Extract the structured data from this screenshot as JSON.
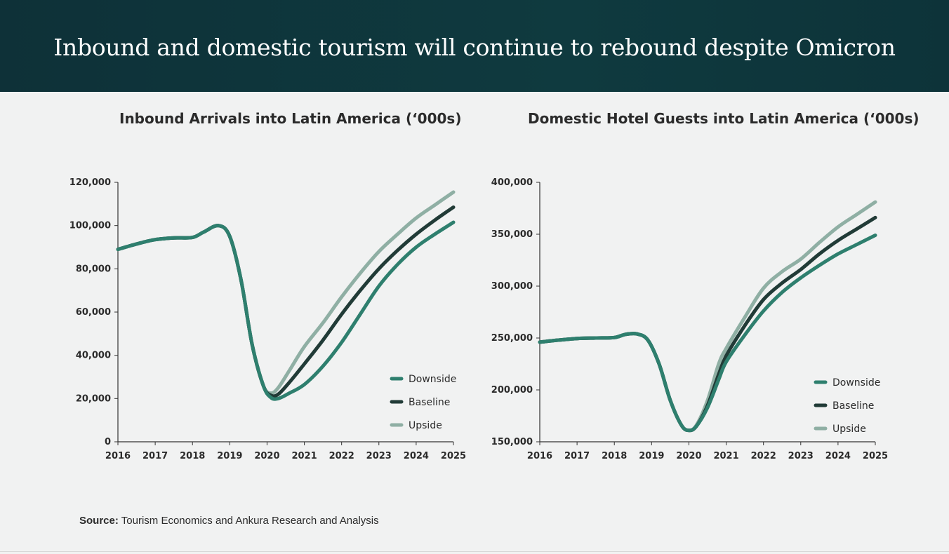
{
  "header": {
    "title": "Inbound and domestic tourism will continue to rebound despite Omicron"
  },
  "source": {
    "label": "Source:",
    "text": "Tourism Economics and Ankura Research and Analysis"
  },
  "colors": {
    "downside": "#2e7f6e",
    "baseline": "#213b37",
    "upside": "#8fafa4",
    "axis": "#333333",
    "header_bg": "#0f373d"
  },
  "chart_data": [
    {
      "type": "line",
      "title": "Inbound Arrivals into Latin America (‘000s)",
      "x_ticks": [
        "2016",
        "2017",
        "2018",
        "2019",
        "2020",
        "2021",
        "2022",
        "2023",
        "2024",
        "2025"
      ],
      "y_ticks": [
        "0",
        "20,000",
        "40,000",
        "60,000",
        "80,000",
        "100,000",
        "120,000"
      ],
      "ylim": [
        0,
        120000
      ],
      "xlim": [
        2016,
        2025
      ],
      "legend": [
        "Downside",
        "Baseline",
        "Upside"
      ],
      "legend_position": "bottom-right",
      "series": [
        {
          "name": "Upside",
          "color_key": "upside",
          "points": [
            [
              2016,
              89000
            ],
            [
              2016.5,
              91500
            ],
            [
              2017,
              93500
            ],
            [
              2017.5,
              94300
            ],
            [
              2018,
              94500
            ],
            [
              2018.3,
              97000
            ],
            [
              2018.7,
              100000
            ],
            [
              2019,
              95000
            ],
            [
              2019.3,
              75000
            ],
            [
              2019.6,
              45000
            ],
            [
              2019.9,
              26000
            ],
            [
              2020.1,
              22500
            ],
            [
              2020.3,
              25000
            ],
            [
              2020.6,
              33000
            ],
            [
              2021,
              44000
            ],
            [
              2021.5,
              55000
            ],
            [
              2022,
              67000
            ],
            [
              2022.5,
              78000
            ],
            [
              2023,
              88000
            ],
            [
              2023.5,
              96000
            ],
            [
              2024,
              103500
            ],
            [
              2024.5,
              109500
            ],
            [
              2025,
              115500
            ]
          ]
        },
        {
          "name": "Baseline",
          "color_key": "baseline",
          "points": [
            [
              2016,
              89000
            ],
            [
              2016.5,
              91500
            ],
            [
              2017,
              93500
            ],
            [
              2017.5,
              94300
            ],
            [
              2018,
              94500
            ],
            [
              2018.3,
              97000
            ],
            [
              2018.7,
              100000
            ],
            [
              2019,
              95000
            ],
            [
              2019.3,
              75000
            ],
            [
              2019.6,
              45000
            ],
            [
              2019.9,
              26000
            ],
            [
              2020.1,
              21500
            ],
            [
              2020.3,
              22000
            ],
            [
              2020.6,
              27500
            ],
            [
              2021,
              36000
            ],
            [
              2021.5,
              47000
            ],
            [
              2022,
              59000
            ],
            [
              2022.5,
              70000
            ],
            [
              2023,
              80000
            ],
            [
              2023.5,
              88500
            ],
            [
              2024,
              96000
            ],
            [
              2024.5,
              102500
            ],
            [
              2025,
              108500
            ]
          ]
        },
        {
          "name": "Downside",
          "color_key": "downside",
          "points": [
            [
              2016,
              89000
            ],
            [
              2016.5,
              91500
            ],
            [
              2017,
              93500
            ],
            [
              2017.5,
              94300
            ],
            [
              2018,
              94500
            ],
            [
              2018.3,
              97000
            ],
            [
              2018.7,
              100000
            ],
            [
              2019,
              95000
            ],
            [
              2019.3,
              75000
            ],
            [
              2019.6,
              45000
            ],
            [
              2019.9,
              26000
            ],
            [
              2020.1,
              20500
            ],
            [
              2020.3,
              20000
            ],
            [
              2020.6,
              22500
            ],
            [
              2021,
              26500
            ],
            [
              2021.5,
              35000
            ],
            [
              2022,
              46000
            ],
            [
              2022.5,
              59000
            ],
            [
              2023,
              72000
            ],
            [
              2023.5,
              82000
            ],
            [
              2024,
              90000
            ],
            [
              2024.5,
              96000
            ],
            [
              2025,
              101500
            ]
          ]
        }
      ]
    },
    {
      "type": "line",
      "title": "Domestic Hotel Guests into Latin America (‘000s)",
      "x_ticks": [
        "2016",
        "2017",
        "2018",
        "2019",
        "2020",
        "2021",
        "2022",
        "2023",
        "2024",
        "2025"
      ],
      "y_ticks": [
        "150,000",
        "200,000",
        "250,000",
        "300,000",
        "350,000",
        "400,000"
      ],
      "ylim": [
        150000,
        400000
      ],
      "xlim": [
        2016,
        2025
      ],
      "legend": [
        "Downside",
        "Baseline",
        "Upside"
      ],
      "legend_position": "bottom-right",
      "series": [
        {
          "name": "Upside",
          "color_key": "upside",
          "points": [
            [
              2016,
              246000
            ],
            [
              2016.5,
              248000
            ],
            [
              2017,
              249500
            ],
            [
              2017.5,
              250000
            ],
            [
              2018,
              250500
            ],
            [
              2018.3,
              253500
            ],
            [
              2018.6,
              254000
            ],
            [
              2018.9,
              248000
            ],
            [
              2019.2,
              225000
            ],
            [
              2019.5,
              190000
            ],
            [
              2019.8,
              166000
            ],
            [
              2020,
              161000
            ],
            [
              2020.2,
              166000
            ],
            [
              2020.5,
              190000
            ],
            [
              2020.8,
              225000
            ],
            [
              2021,
              240000
            ],
            [
              2021.5,
              270000
            ],
            [
              2022,
              298000
            ],
            [
              2022.5,
              314000
            ],
            [
              2023,
              326000
            ],
            [
              2023.5,
              342000
            ],
            [
              2024,
              357000
            ],
            [
              2024.5,
              369000
            ],
            [
              2025,
              381000
            ]
          ]
        },
        {
          "name": "Baseline",
          "color_key": "baseline",
          "points": [
            [
              2016,
              246000
            ],
            [
              2016.5,
              248000
            ],
            [
              2017,
              249500
            ],
            [
              2017.5,
              250000
            ],
            [
              2018,
              250500
            ],
            [
              2018.3,
              253500
            ],
            [
              2018.6,
              254000
            ],
            [
              2018.9,
              248000
            ],
            [
              2019.2,
              225000
            ],
            [
              2019.5,
              190000
            ],
            [
              2019.8,
              166000
            ],
            [
              2020,
              161000
            ],
            [
              2020.2,
              165000
            ],
            [
              2020.5,
              185000
            ],
            [
              2020.8,
              215000
            ],
            [
              2021,
              233000
            ],
            [
              2021.5,
              262000
            ],
            [
              2022,
              287000
            ],
            [
              2022.5,
              303000
            ],
            [
              2023,
              316000
            ],
            [
              2023.5,
              331000
            ],
            [
              2024,
              344000
            ],
            [
              2024.5,
              355000
            ],
            [
              2025,
              366000
            ]
          ]
        },
        {
          "name": "Downside",
          "color_key": "downside",
          "points": [
            [
              2016,
              246000
            ],
            [
              2016.5,
              248000
            ],
            [
              2017,
              249500
            ],
            [
              2017.5,
              250000
            ],
            [
              2018,
              250500
            ],
            [
              2018.3,
              253500
            ],
            [
              2018.6,
              254000
            ],
            [
              2018.9,
              248000
            ],
            [
              2019.2,
              225000
            ],
            [
              2019.5,
              190000
            ],
            [
              2019.8,
              166000
            ],
            [
              2020,
              161000
            ],
            [
              2020.2,
              165000
            ],
            [
              2020.5,
              183000
            ],
            [
              2020.8,
              210000
            ],
            [
              2021,
              227000
            ],
            [
              2021.5,
              253000
            ],
            [
              2022,
              276000
            ],
            [
              2022.5,
              294000
            ],
            [
              2023,
              308000
            ],
            [
              2023.5,
              320000
            ],
            [
              2024,
              331000
            ],
            [
              2024.5,
              340000
            ],
            [
              2025,
              349000
            ]
          ]
        }
      ]
    }
  ]
}
